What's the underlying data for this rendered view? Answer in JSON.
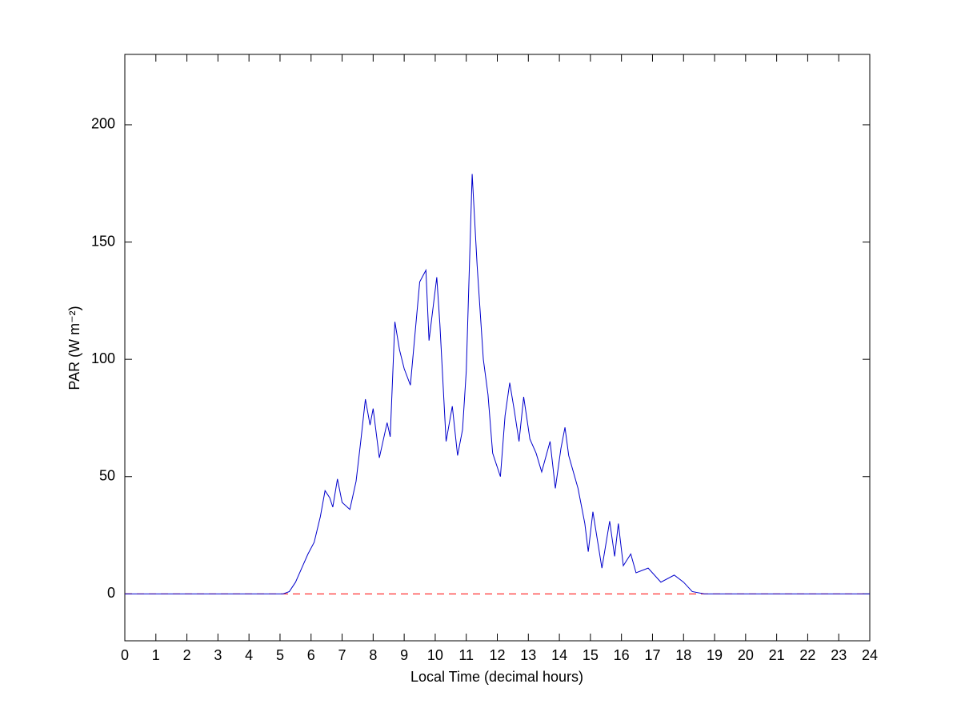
{
  "chart_data": {
    "type": "line",
    "xlabel": "Local Time (decimal hours)",
    "ylabel": "PAR (W m⁻²)",
    "x": [
      0,
      5.1,
      5.3,
      5.5,
      5.7,
      5.9,
      6.1,
      6.3,
      6.45,
      6.6,
      6.7,
      6.85,
      7.0,
      7.25,
      7.45,
      7.6,
      7.75,
      7.9,
      8.0,
      8.2,
      8.45,
      8.55,
      8.7,
      8.85,
      9.0,
      9.2,
      9.5,
      9.7,
      9.8,
      10.05,
      10.15,
      10.35,
      10.55,
      10.72,
      10.88,
      11.0,
      11.19,
      11.35,
      11.55,
      11.7,
      11.85,
      12.1,
      12.25,
      12.4,
      12.55,
      12.7,
      12.85,
      13.05,
      13.25,
      13.43,
      13.7,
      13.87,
      14.05,
      14.18,
      14.3,
      14.6,
      14.82,
      14.93,
      15.08,
      15.2,
      15.37,
      15.62,
      15.78,
      15.9,
      16.06,
      16.3,
      16.47,
      16.86,
      17.27,
      17.7,
      18.0,
      18.28,
      18.67,
      24
    ],
    "series": [
      {
        "color": "#0000cc",
        "values": [
          0,
          0,
          1,
          5,
          11,
          17,
          22,
          33,
          44,
          41,
          37,
          49,
          39,
          36,
          48,
          65,
          83,
          72,
          79,
          58,
          73,
          67,
          116,
          104,
          96,
          89,
          133,
          138,
          108,
          135,
          115,
          65,
          80,
          59,
          70,
          95,
          179,
          140,
          100,
          85,
          60,
          50,
          76,
          90,
          78,
          65,
          84,
          66,
          60,
          52,
          65,
          45,
          62,
          71,
          59,
          45,
          30,
          18,
          35,
          25,
          11,
          31,
          16,
          30,
          12,
          17,
          9,
          11,
          5,
          8,
          5,
          1,
          0,
          0
        ]
      }
    ],
    "reference_line": {
      "y": 0,
      "color": "#ff0000",
      "dashed": true
    },
    "xlim": [
      0,
      24
    ],
    "xticks": [
      0,
      1,
      2,
      3,
      4,
      5,
      6,
      7,
      8,
      9,
      10,
      11,
      12,
      13,
      14,
      15,
      16,
      17,
      18,
      19,
      20,
      21,
      22,
      23,
      24
    ],
    "ylim": [
      -20,
      230
    ],
    "yticks": [
      0,
      50,
      100,
      150,
      200
    ],
    "grid": false
  }
}
